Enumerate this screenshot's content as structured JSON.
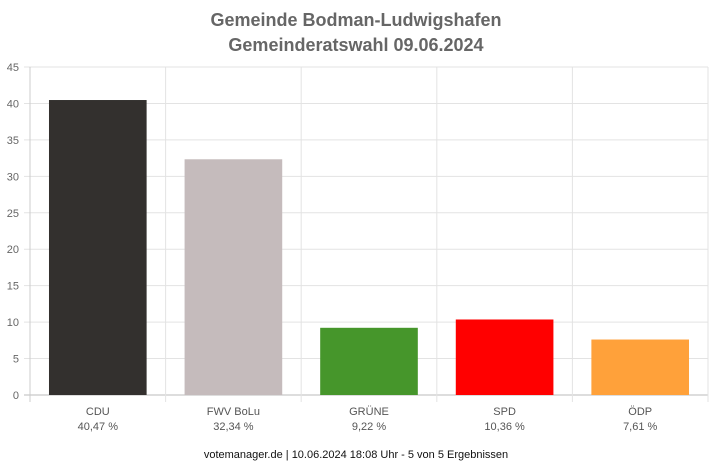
{
  "header": {
    "title": "Gemeinde Bodman-Ludwigshafen",
    "subtitle": "Gemeinderatswahl 09.06.2024"
  },
  "footer": {
    "text": "votemanager.de | 10.06.2024 18:08 Uhr - 5 von 5 Ergebnissen"
  },
  "chart_data": {
    "type": "bar",
    "title": "Gemeinde Bodman-Ludwigshafen",
    "subtitle": "Gemeinderatswahl 09.06.2024",
    "categories": [
      "CDU",
      "FWV BoLu",
      "GRÜNE",
      "SPD",
      "ÖDP"
    ],
    "values": [
      40.47,
      32.34,
      9.22,
      10.36,
      7.61
    ],
    "value_labels": [
      "40,47 %",
      "32,34 %",
      "9,22 %",
      "10,36 %",
      "7,61 %"
    ],
    "colors": [
      "#33302e",
      "#c5bbbc",
      "#46962b",
      "#ff0000",
      "#ffa13a"
    ],
    "ylim": [
      0,
      45
    ],
    "yticks": [
      0,
      5,
      10,
      15,
      20,
      25,
      30,
      35,
      40,
      45
    ],
    "grid": true,
    "legend": "none"
  }
}
